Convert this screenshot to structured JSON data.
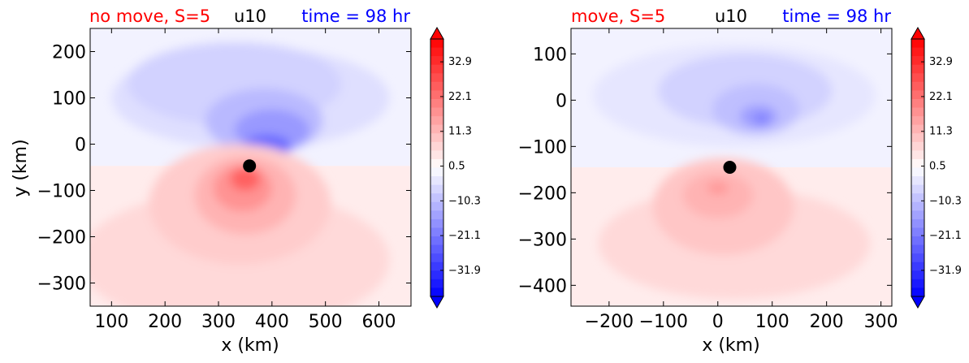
{
  "chart_data": [
    {
      "type": "heatmap",
      "variable": "u10",
      "title_left": "no move, S=5",
      "title_center": "u10",
      "title_right": "time = 98 hr",
      "title_left_color": "#ff0000",
      "title_right_color": "#0000ff",
      "xlabel": "x (km)",
      "ylabel": "y (km)",
      "xlim": [
        60,
        660
      ],
      "ylim": [
        -350,
        250
      ],
      "xticks": [
        100,
        200,
        300,
        400,
        500,
        600
      ],
      "yticks": [
        -300,
        -200,
        -100,
        0,
        100,
        200
      ],
      "xtick_labels": [
        "100",
        "200",
        "300",
        "400",
        "500",
        "600"
      ],
      "ytick_labels": [
        "−300",
        "−200",
        "−100",
        "0",
        "100",
        "200"
      ],
      "marker": {
        "x": 358,
        "y": -47
      },
      "colorbar": {
        "range": [
          -40,
          40
        ],
        "ticks": [
          32.9,
          22.1,
          11.3,
          0.5,
          -10.3,
          -21.1,
          -31.9
        ],
        "tick_labels": [
          "32.9",
          "22.1",
          "11.3",
          "0.5",
          "−10.3",
          "−21.1",
          "−31.9"
        ],
        "extend": "both",
        "colormap": "bwr"
      },
      "features": [
        {
          "x": 360,
          "y": 100,
          "rx": 260,
          "ry": 110,
          "value": -5
        },
        {
          "x": 330,
          "y": 130,
          "rx": 200,
          "ry": 90,
          "value": -7
        },
        {
          "x": 385,
          "y": 50,
          "rx": 110,
          "ry": 70,
          "value": -11
        },
        {
          "x": 400,
          "y": 30,
          "rx": 70,
          "ry": 45,
          "value": -16
        },
        {
          "x": 390,
          "y": -5,
          "rx": 45,
          "ry": 25,
          "value": -24
        },
        {
          "x": 375,
          "y": -25,
          "rx": 22,
          "ry": 15,
          "value": -33
        },
        {
          "x": 330,
          "y": -250,
          "rx": 290,
          "ry": 150,
          "value": 6
        },
        {
          "x": 340,
          "y": -130,
          "rx": 170,
          "ry": 130,
          "value": 8
        },
        {
          "x": 350,
          "y": -110,
          "rx": 95,
          "ry": 85,
          "value": 12
        },
        {
          "x": 345,
          "y": -95,
          "rx": 55,
          "ry": 50,
          "value": 17
        },
        {
          "x": 350,
          "y": -75,
          "rx": 28,
          "ry": 25,
          "value": 25
        }
      ],
      "background_value_top": -2,
      "background_value_bottom": 3
    },
    {
      "type": "heatmap",
      "variable": "u10",
      "title_left": "move, S=5",
      "title_center": "u10",
      "title_right": "time = 98 hr",
      "title_left_color": "#ff0000",
      "title_right_color": "#0000ff",
      "xlabel": "x (km)",
      "ylabel": "",
      "xlim": [
        -270,
        320
      ],
      "ylim": [
        -445,
        155
      ],
      "xticks": [
        -200,
        -100,
        0,
        100,
        200,
        300
      ],
      "yticks": [
        -400,
        -300,
        -200,
        -100,
        0,
        100
      ],
      "xtick_labels": [
        "−200",
        "−100",
        "0",
        "100",
        "200",
        "300"
      ],
      "ytick_labels": [
        "−400",
        "−300",
        "−200",
        "−100",
        "0",
        "100"
      ],
      "marker": {
        "x": 22,
        "y": -145
      },
      "colorbar": {
        "range": [
          -40,
          40
        ],
        "ticks": [
          32.9,
          22.1,
          11.3,
          0.5,
          -10.3,
          -21.1,
          -31.9
        ],
        "tick_labels": [
          "32.9",
          "22.1",
          "11.3",
          "0.5",
          "−10.3",
          "−21.1",
          "−31.9"
        ],
        "extend": "both",
        "colormap": "bwr"
      },
      "features": [
        {
          "x": 30,
          "y": 10,
          "rx": 260,
          "ry": 110,
          "value": -4
        },
        {
          "x": 50,
          "y": 20,
          "rx": 160,
          "ry": 80,
          "value": -7
        },
        {
          "x": 70,
          "y": -20,
          "rx": 80,
          "ry": 55,
          "value": -10
        },
        {
          "x": 75,
          "y": -35,
          "rx": 35,
          "ry": 25,
          "value": -15
        },
        {
          "x": 80,
          "y": -40,
          "rx": 14,
          "ry": 10,
          "value": -21
        },
        {
          "x": 30,
          "y": -310,
          "rx": 250,
          "ry": 120,
          "value": 6
        },
        {
          "x": 10,
          "y": -230,
          "rx": 130,
          "ry": 105,
          "value": 9
        },
        {
          "x": 0,
          "y": -205,
          "rx": 65,
          "ry": 50,
          "value": 12
        },
        {
          "x": 0,
          "y": -190,
          "rx": 20,
          "ry": 14,
          "value": 16
        }
      ],
      "background_value_top": -2,
      "background_value_bottom": 3
    }
  ]
}
